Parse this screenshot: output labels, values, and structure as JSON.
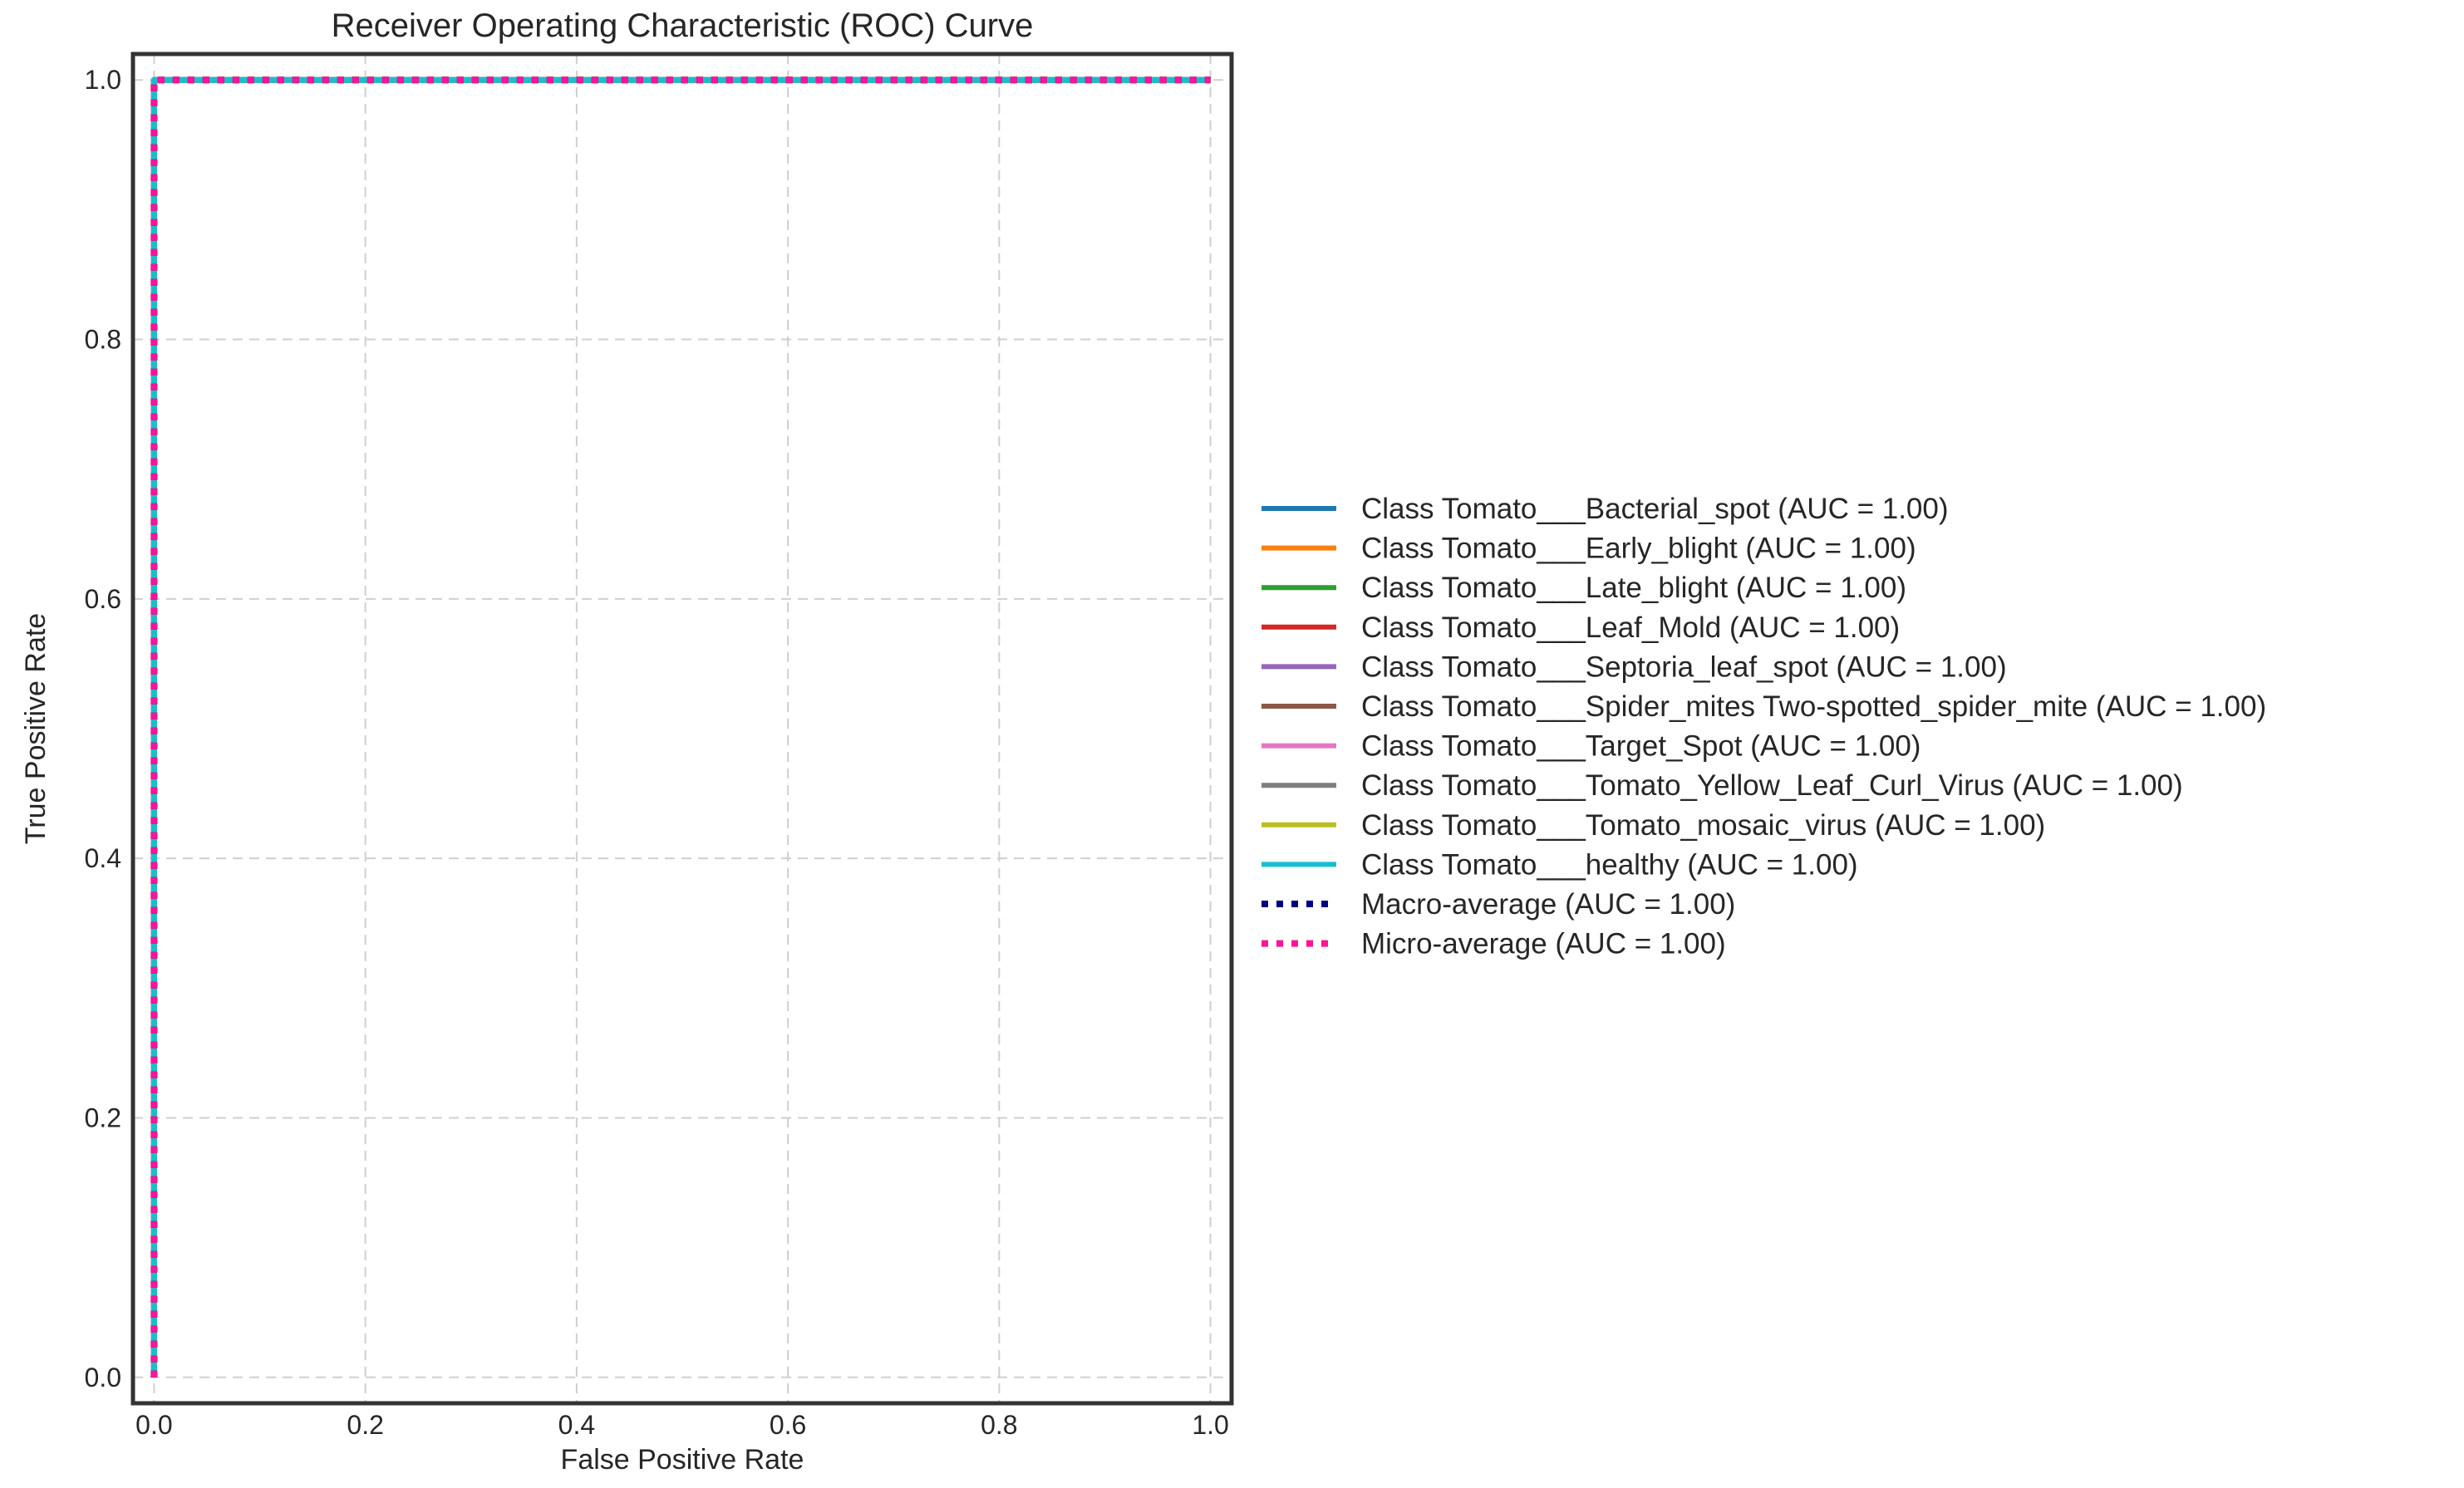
{
  "chart_data": {
    "type": "line",
    "title": "Receiver Operating Characteristic (ROC) Curve",
    "xlabel": "False Positive Rate",
    "ylabel": "True Positive Rate",
    "xlim": [
      -0.02,
      1.02
    ],
    "ylim": [
      -0.02,
      1.02
    ],
    "x_ticks": [
      0.0,
      0.2,
      0.4,
      0.6,
      0.8,
      1.0
    ],
    "y_ticks": [
      0.0,
      0.2,
      0.4,
      0.6,
      0.8,
      1.0
    ],
    "x_tick_labels": [
      "0.0",
      "0.2",
      "0.4",
      "0.6",
      "0.8",
      "1.0"
    ],
    "y_tick_labels": [
      "0.0",
      "0.2",
      "0.4",
      "0.6",
      "0.8",
      "1.0"
    ],
    "grid": true,
    "legend_position": "outside-right",
    "series": [
      {
        "name": "Class Tomato___Bacterial_spot (AUC = 1.00)",
        "color": "#1f77b4",
        "style": "solid",
        "x": [
          0,
          0,
          1
        ],
        "y": [
          0,
          1,
          1
        ]
      },
      {
        "name": "Class Tomato___Early_blight (AUC = 1.00)",
        "color": "#ff7f0e",
        "style": "solid",
        "x": [
          0,
          0,
          1
        ],
        "y": [
          0,
          1,
          1
        ]
      },
      {
        "name": "Class Tomato___Late_blight (AUC = 1.00)",
        "color": "#2ca02c",
        "style": "solid",
        "x": [
          0,
          0,
          1
        ],
        "y": [
          0,
          1,
          1
        ]
      },
      {
        "name": "Class Tomato___Leaf_Mold (AUC = 1.00)",
        "color": "#d62728",
        "style": "solid",
        "x": [
          0,
          0,
          1
        ],
        "y": [
          0,
          1,
          1
        ]
      },
      {
        "name": "Class Tomato___Septoria_leaf_spot (AUC = 1.00)",
        "color": "#9467bd",
        "style": "solid",
        "x": [
          0,
          0,
          1
        ],
        "y": [
          0,
          1,
          1
        ]
      },
      {
        "name": "Class Tomato___Spider_mites Two-spotted_spider_mite (AUC = 1.00)",
        "color": "#8c564b",
        "style": "solid",
        "x": [
          0,
          0,
          1
        ],
        "y": [
          0,
          1,
          1
        ]
      },
      {
        "name": "Class Tomato___Target_Spot (AUC = 1.00)",
        "color": "#e377c2",
        "style": "solid",
        "x": [
          0,
          0,
          1
        ],
        "y": [
          0,
          1,
          1
        ]
      },
      {
        "name": "Class Tomato___Tomato_Yellow_Leaf_Curl_Virus (AUC = 1.00)",
        "color": "#7f7f7f",
        "style": "solid",
        "x": [
          0,
          0,
          1
        ],
        "y": [
          0,
          1,
          1
        ]
      },
      {
        "name": "Class Tomato___Tomato_mosaic_virus (AUC = 1.00)",
        "color": "#bcbd22",
        "style": "solid",
        "x": [
          0,
          0,
          1
        ],
        "y": [
          0,
          1,
          1
        ]
      },
      {
        "name": "Class Tomato___healthy (AUC = 1.00)",
        "color": "#17becf",
        "style": "solid",
        "x": [
          0,
          0,
          1
        ],
        "y": [
          0,
          1,
          1
        ]
      },
      {
        "name": "Macro-average (AUC = 1.00)",
        "color": "#000080",
        "style": "dotted",
        "x": [
          0,
          0,
          1
        ],
        "y": [
          0,
          1,
          1
        ]
      },
      {
        "name": "Micro-average (AUC = 1.00)",
        "color": "#ff1493",
        "style": "dotted",
        "x": [
          0,
          0,
          1
        ],
        "y": [
          0,
          1,
          1
        ]
      }
    ]
  }
}
